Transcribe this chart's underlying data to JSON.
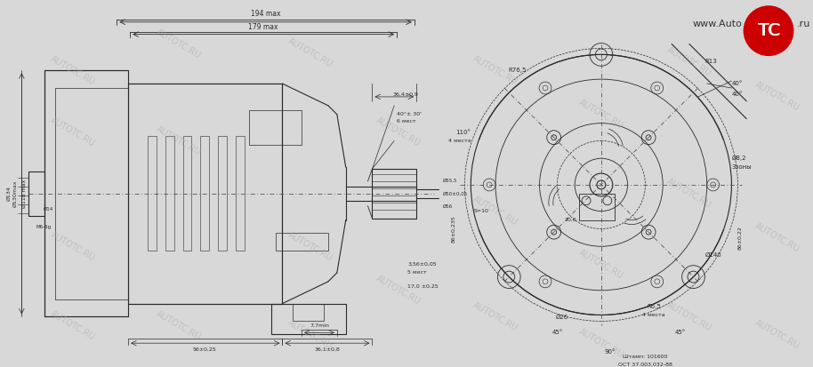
{
  "bg_color": "#d8d8d8",
  "line_color": "#2a2a2a",
  "thin_line": 0.5,
  "medium_line": 0.8,
  "thick_line": 1.2,
  "watermark_color": "#b0b0b0",
  "watermark_texts": [
    "AUTOTC.RU",
    "AUTOTC.RU",
    "AUTOTC.RU",
    "AUTOTC.RU",
    "AUTOTC.RU",
    "AUTOTC.RU"
  ],
  "logo_text": "www.AutoTC.ru",
  "logo_color_www": "#333333",
  "logo_color_auto": "#333333",
  "logo_color_tc": "#cc0000",
  "title_note": "Штамп: 101600\nОСТ 37.003.032-88",
  "dim_texts": {
    "194max": "194 max",
    "179max": "179 max",
    "364pm09": "36,4±0,9",
    "40deg30": "40°± 30'",
    "6mest": "6 мест",
    "d130max": "Ø130max",
    "d118max": "Ø118 max",
    "d134": "Ø134",
    "d14": "Ø14",
    "M6_6g": "M6-6g",
    "3_56pm005": "3,56±0,05",
    "5mest": "5 мест",
    "17pm025": "17,0 ±0,25",
    "56pm025": "56±0,25",
    "361pm08": "36,1±0,8",
    "77min": "7,7min",
    "R765": "R76,5",
    "110deg": "110°",
    "4mest": "4 места",
    "R13": "R13",
    "40deg": "40°",
    "d82": "Ø8,2",
    "3zones": "3зоны",
    "d140": "Ø140",
    "R65": "R6,5",
    "4mesta": "4 места",
    "d26": "Ø26",
    "45deg": "45°",
    "90deg": "90°",
    "8640235": "86±0,235",
    "S10": "S=10",
    "206": "20,6",
    "8610_22": "86±0,22",
    "phi_555": "Ø55,5",
    "phi_50": "Ø50±0,05",
    "phi_56": "Ø56"
  }
}
